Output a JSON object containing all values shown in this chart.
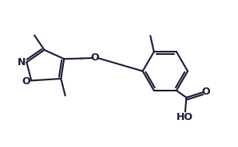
{
  "bg_color": "#ffffff",
  "line_color": "#1a1a3a",
  "line_width": 1.5,
  "figsize": [
    2.98,
    1.85
  ],
  "dpi": 100,
  "xlim": [
    0,
    10
  ],
  "ylim": [
    0,
    6.2
  ]
}
